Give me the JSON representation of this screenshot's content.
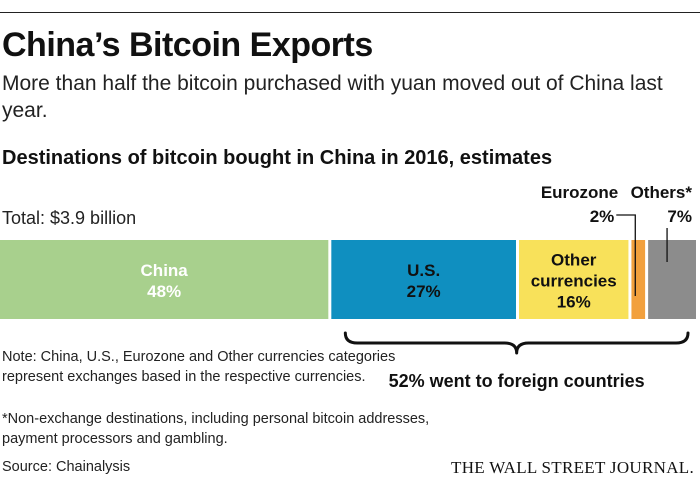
{
  "header": {
    "title": "China’s Bitcoin Exports",
    "subtitle": "More than half the bitcoin purchased with yuan moved out of China last year.",
    "chart_heading": "Destinations of bitcoin bought in China in 2016, estimates",
    "total": "Total: $3.9 billion"
  },
  "chart_data": {
    "type": "bar",
    "orientation": "stacked-horizontal",
    "title": "Destinations of bitcoin bought in China in 2016, estimates",
    "total_label": "Total: $3.9 billion",
    "unit": "%",
    "segments": [
      {
        "name": "China",
        "value": 48,
        "label": "48%",
        "color": "#a8d08d",
        "label_inside": true
      },
      {
        "name": "U.S.",
        "value": 27,
        "label": "27%",
        "color": "#0f8fc0",
        "label_inside": true
      },
      {
        "name": "Other currencies",
        "value": 16,
        "label": "16%",
        "color": "#f8e15a",
        "label_inside": true
      },
      {
        "name": "Eurozone",
        "value": 2,
        "label": "2%",
        "color": "#f2a03d",
        "label_inside": false
      },
      {
        "name": "Others*",
        "value": 7,
        "label": "7%",
        "color": "#8c8c8c",
        "label_inside": false
      }
    ],
    "bracket_annotation": "52% went to foreign countries"
  },
  "footer": {
    "note": "Note: China, U.S., Eurozone and Other currencies categories represent exchanges based in the respective currencies.",
    "note2": "*Non-exchange destinations, including personal bitcoin addresses, payment processors and gambling.",
    "source": "Source: Chainalysis",
    "credit": "THE WALL STREET JOURNAL."
  }
}
